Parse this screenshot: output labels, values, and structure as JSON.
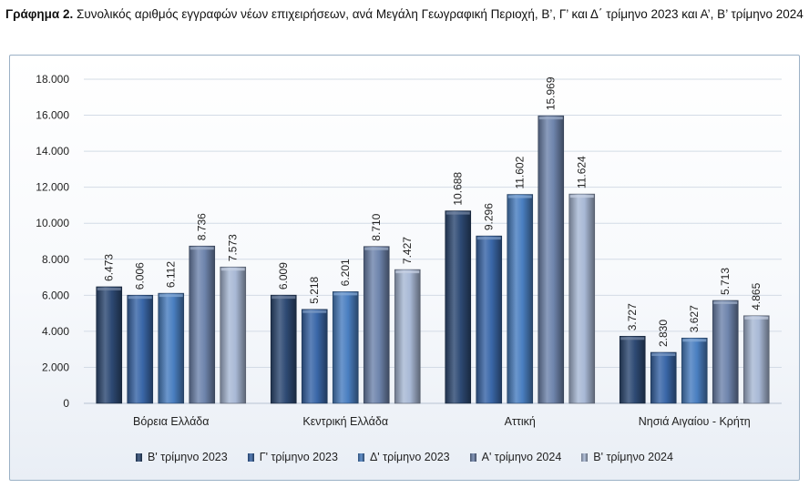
{
  "title": {
    "bold": "Γράφημα 2.",
    "text": " Συνολικός αριθμός εγγραφών νέων επιχειρήσεων, ανά Μεγάλη Γεωγραφική Περιοχή, Β’, Γ’ και Δ΄ τρίμηνο 2023 και Α’, Β’ τρίμηνο 2024"
  },
  "chart_data": {
    "type": "bar",
    "title": "Γράφημα 2. Συνολικός αριθμός εγγραφών νέων επιχειρήσεων, ανά Μεγάλη Γεωγραφική Περιοχή, Β’, Γ’ και Δ΄ τρίμηνο 2023 και Α’, Β’ τρίμηνο 2024",
    "categories": [
      "Βόρεια Ελλάδα",
      "Κεντρική Ελλάδα",
      "Αττική",
      "Νησιά Αιγαίου - Κρήτη"
    ],
    "series": [
      {
        "name": "Β' τρίμηνο 2023",
        "color": "#2e4a74",
        "values": [
          6473,
          6009,
          10688,
          3727
        ],
        "labels": [
          "6.473",
          "6.009",
          "10.688",
          "3.727"
        ]
      },
      {
        "name": "Γ' τρίμηνο 2023",
        "color": "#3a67a8",
        "values": [
          6006,
          5218,
          9296,
          2830
        ],
        "labels": [
          "6.006",
          "5.218",
          "9.296",
          "2.830"
        ]
      },
      {
        "name": "Δ' τρίμηνο 2023",
        "color": "#4a7fc1",
        "values": [
          6112,
          6201,
          11602,
          3627
        ],
        "labels": [
          "6.112",
          "6.201",
          "11.602",
          "3.627"
        ]
      },
      {
        "name": "Α' τρίμηνο 2024",
        "color": "#6f85ad",
        "values": [
          8736,
          8710,
          15969,
          5713
        ],
        "labels": [
          "8.736",
          "8.710",
          "15.969",
          "5.713"
        ]
      },
      {
        "name": "Β' τρίμηνο 2024",
        "color": "#a9b9d6",
        "values": [
          7573,
          7427,
          11624,
          4865
        ],
        "labels": [
          "7.573",
          "7.427",
          "11.624",
          "4.865"
        ]
      }
    ],
    "ylim": [
      0,
      18000
    ],
    "yticks": [
      0,
      2000,
      4000,
      6000,
      8000,
      10000,
      12000,
      14000,
      16000,
      18000
    ],
    "ytick_labels": [
      "0",
      "2.000",
      "4.000",
      "6.000",
      "8.000",
      "10.000",
      "12.000",
      "14.000",
      "16.000",
      "18.000"
    ],
    "grid": true,
    "legend": "bottom"
  }
}
